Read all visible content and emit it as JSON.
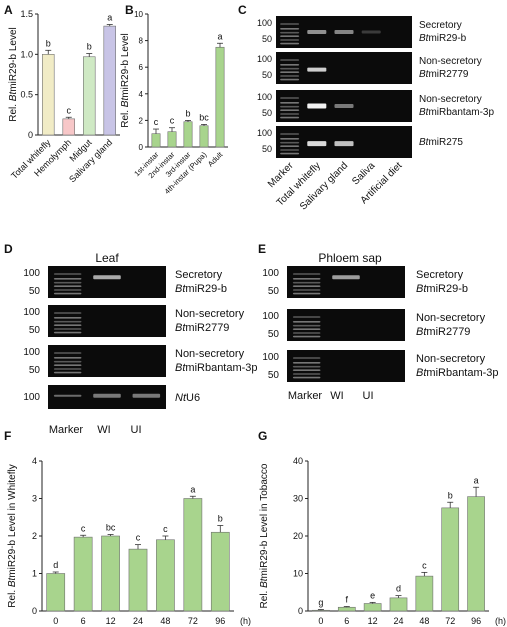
{
  "panel_letters": {
    "A": "A",
    "B": "B",
    "C": "C",
    "D": "D",
    "E": "E",
    "F": "F",
    "G": "G"
  },
  "chart_data": [
    {
      "id": "A",
      "type": "bar",
      "categories": [
        "Total whitefly",
        "Hemolymph",
        "Midgut",
        "Salivary gland"
      ],
      "values": [
        1.0,
        0.2,
        0.97,
        1.35
      ],
      "errors": [
        0.05,
        0.02,
        0.04,
        0.02
      ],
      "letters": [
        "b",
        "c",
        "b",
        "a"
      ],
      "colors": [
        "#f1ecc6",
        "#f7c7c8",
        "#cfe9c4",
        "#c8c4e6"
      ],
      "ylabel_prefix": "Rel. ",
      "ylabel_italic": "Bt",
      "ylabel_suffix": "miR29-b Level",
      "ylim": [
        0,
        1.5
      ],
      "yticks": [
        0,
        0.5,
        1.0,
        1.5
      ],
      "yticklabels": [
        "0",
        "0.5",
        "1.0",
        "1.5"
      ]
    },
    {
      "id": "B",
      "type": "bar",
      "categories": [
        "1st-instar",
        "2nd-instar",
        "3rd-instar",
        "4th-instar (Pupa)",
        "Adult"
      ],
      "values": [
        1.0,
        1.15,
        1.9,
        1.6,
        7.5
      ],
      "errors": [
        0.35,
        0.3,
        0.1,
        0.1,
        0.3
      ],
      "letters": [
        "c",
        "c",
        "b",
        "bc",
        "a"
      ],
      "color": "#a8d48d",
      "ylabel_prefix": "Rel. ",
      "ylabel_italic": "Bt",
      "ylabel_suffix": "miR29-b Level",
      "ylim": [
        0,
        10
      ],
      "yticks": [
        0,
        2,
        4,
        6,
        8,
        10
      ],
      "yticklabels": [
        "0",
        "2",
        "4",
        "6",
        "8",
        "10"
      ]
    },
    {
      "id": "F",
      "type": "bar",
      "categories": [
        "0",
        "6",
        "12",
        "24",
        "48",
        "72",
        "96"
      ],
      "values": [
        1.0,
        1.97,
        2.0,
        1.65,
        1.9,
        3.0,
        2.1
      ],
      "errors": [
        0.04,
        0.05,
        0.04,
        0.12,
        0.1,
        0.06,
        0.18
      ],
      "letters": [
        "d",
        "c",
        "bc",
        "c",
        "c",
        "a",
        "b"
      ],
      "color": "#a8d48d",
      "xunit": "(h)",
      "ylabel_prefix": "Rel. ",
      "ylabel_italic": "Bt",
      "ylabel_suffix": "miR29-b Level in Whitefly",
      "ylim": [
        0,
        4
      ],
      "yticks": [
        0,
        1,
        2,
        3,
        4
      ],
      "yticklabels": [
        "0",
        "1",
        "2",
        "3",
        "4"
      ]
    },
    {
      "id": "G",
      "type": "bar",
      "categories": [
        "0",
        "6",
        "12",
        "24",
        "48",
        "72",
        "96"
      ],
      "values": [
        0.2,
        1.0,
        2.0,
        3.5,
        9.3,
        27.5,
        30.5
      ],
      "errors": [
        0.2,
        0.2,
        0.3,
        0.6,
        1.0,
        1.5,
        2.5
      ],
      "letters": [
        "g",
        "f",
        "e",
        "d",
        "c",
        "b",
        "a"
      ],
      "color": "#a8d48d",
      "xunit": "(h)",
      "ylabel_prefix": "Rel. ",
      "ylabel_italic": "Bt",
      "ylabel_suffix": "miR29-b Level in Tobacco",
      "ylim": [
        0,
        40
      ],
      "yticks": [
        0,
        10,
        20,
        30,
        40
      ],
      "yticklabels": [
        "0",
        "10",
        "20",
        "30",
        "40"
      ]
    }
  ],
  "gel_C": {
    "lanes": [
      "Marker",
      "Total whitefly",
      "Salivary gland",
      "Saliva",
      "Artificial diet"
    ],
    "rows": [
      {
        "label_1": "Secretory",
        "label_2_italic": "Bt",
        "label_2_rest": "miR29-b"
      },
      {
        "label_1": "Non-secretory",
        "label_2_italic": "Bt",
        "label_2_rest": "miR2779"
      },
      {
        "label_1": "Non-secretory",
        "label_2_italic": "Bt",
        "label_2_rest": "miRbantam-3p"
      },
      {
        "label_1": "",
        "label_2_italic": "Bt",
        "label_2_rest": "miR275"
      }
    ],
    "markers": [
      "100",
      "50"
    ]
  },
  "gel_D": {
    "title": "Leaf",
    "lanes": [
      "Marker",
      "WI",
      "UI"
    ],
    "rows": [
      {
        "label_1": "Secretory",
        "label_2_italic": "Bt",
        "label_2_rest": "miR29-b",
        "markers": [
          "100",
          "50"
        ]
      },
      {
        "label_1": "Non-secretory",
        "label_2_italic": "Bt",
        "label_2_rest": "miR2779",
        "markers": [
          "100",
          "50"
        ]
      },
      {
        "label_1": "Non-secretory",
        "label_2_italic": "Bt",
        "label_2_rest": "miRbantam-3p",
        "markers": [
          "100",
          "50"
        ]
      },
      {
        "label_1": "",
        "label_2_italic": "Nt",
        "label_2_rest": "U6",
        "markers": [
          "100"
        ]
      }
    ]
  },
  "gel_E": {
    "title": "Phloem sap",
    "lanes": [
      "Marker",
      "WI",
      "UI"
    ],
    "rows": [
      {
        "label_1": "Secretory",
        "label_2_italic": "Bt",
        "label_2_rest": "miR29-b",
        "markers": [
          "100",
          "50"
        ]
      },
      {
        "label_1": "Non-secretory",
        "label_2_italic": "Bt",
        "label_2_rest": "miR2779",
        "markers": [
          "100",
          "50"
        ]
      },
      {
        "label_1": "Non-secretory",
        "label_2_italic": "Bt",
        "label_2_rest": "miRbantam-3p",
        "markers": [
          "100",
          "50"
        ]
      }
    ]
  }
}
